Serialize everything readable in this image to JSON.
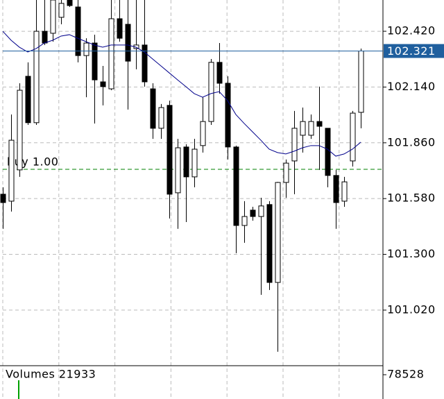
{
  "chart_data": {
    "type": "candlestick",
    "open": [
      101.602,
      101.567,
      101.724,
      102.194,
      101.961,
      102.42,
      102.41,
      102.49,
      102.577,
      102.542,
      102.298,
      102.361,
      102.166,
      102.131,
      102.483,
      102.455,
      102.333,
      102.351,
      102.131,
      101.933,
      102.048,
      101.609,
      101.839,
      101.689,
      101.846,
      101.967,
      102.264,
      102.159,
      101.839,
      101.445,
      101.522,
      101.49,
      101.55,
      101.159,
      101.661,
      101.769,
      101.898,
      101.898,
      101.967,
      101.933,
      101.696,
      101.567,
      101.769,
      102.013
    ],
    "high": [
      101.637,
      102.002,
      102.159,
      102.264,
      102.577,
      102.577,
      102.577,
      102.577,
      102.577,
      102.577,
      102.385,
      102.403,
      102.246,
      102.577,
      102.577,
      102.577,
      102.577,
      102.577,
      102.159,
      102.055,
      102.072,
      101.88,
      101.853,
      101.88,
      102.089,
      102.281,
      102.361,
      102.194,
      101.846,
      101.567,
      101.539,
      101.584,
      101.567,
      101.664,
      101.776,
      102.02,
      102.037,
      102.002,
      102.142,
      101.933,
      101.724,
      101.689,
      102.02,
      102.333
    ],
    "low": [
      101.428,
      101.515,
      101.689,
      101.95,
      101.95,
      102.351,
      102.368,
      102.455,
      102.542,
      102.264,
      102.089,
      101.957,
      102.048,
      102.124,
      102.368,
      102.027,
      102.229,
      102.142,
      101.88,
      101.88,
      101.48,
      101.428,
      101.462,
      101.637,
      101.811,
      101.95,
      102.107,
      101.776,
      101.306,
      101.358,
      101.469,
      101.097,
      101.121,
      100.811,
      101.584,
      101.602,
      101.811,
      101.88,
      101.724,
      101.637,
      101.428,
      101.539,
      101.741,
      101.933
    ],
    "close": [
      101.56,
      101.873,
      102.124,
      101.961,
      102.42,
      102.361,
      102.577,
      102.56,
      102.549,
      102.298,
      102.361,
      102.176,
      102.142,
      102.483,
      102.385,
      102.27,
      102.351,
      102.166,
      101.933,
      102.037,
      101.602,
      101.835,
      101.689,
      101.828,
      101.967,
      102.264,
      102.159,
      101.839,
      101.445,
      101.49,
      101.49,
      101.543,
      101.159,
      101.661,
      101.758,
      101.933,
      101.967,
      101.967,
      101.943,
      101.696,
      101.56,
      101.664,
      102.009,
      102.321
    ],
    "up_color": "#ffffff",
    "down_color": "#000000",
    "ma": {
      "color": "#00008b",
      "values": [
        102.42,
        102.375,
        102.34,
        102.316,
        102.333,
        102.361,
        102.375,
        102.396,
        102.403,
        102.385,
        102.368,
        102.351,
        102.34,
        102.351,
        102.351,
        102.351,
        102.34,
        102.316,
        102.281,
        102.246,
        102.211,
        102.176,
        102.142,
        102.107,
        102.089,
        102.107,
        102.117,
        102.072,
        102.002,
        101.957,
        101.915,
        101.873,
        101.828,
        101.811,
        101.804,
        101.818,
        101.835,
        101.846,
        101.846,
        101.828,
        101.793,
        101.804,
        101.828,
        101.863
      ]
    },
    "ylim": [
      100.741,
      102.577
    ],
    "yticks": [
      {
        "value": 102.42,
        "label": "102.420"
      },
      {
        "value": 102.14,
        "label": "102.140"
      },
      {
        "value": 101.86,
        "label": "101.860"
      },
      {
        "value": 101.58,
        "label": "101.580"
      },
      {
        "value": 101.3,
        "label": "101.300"
      },
      {
        "value": 101.02,
        "label": "101.020"
      }
    ],
    "grid": true,
    "current_price": {
      "value": 102.321,
      "label": "102.321",
      "color": "#1f5f9e"
    },
    "order_line": {
      "label": "buy 1.00",
      "price": 101.727,
      "color": "#008000"
    },
    "volume": {
      "title": "Volumes 21933",
      "ylim": [
        0,
        107700
      ],
      "yticks": [
        78528
      ]
    }
  }
}
